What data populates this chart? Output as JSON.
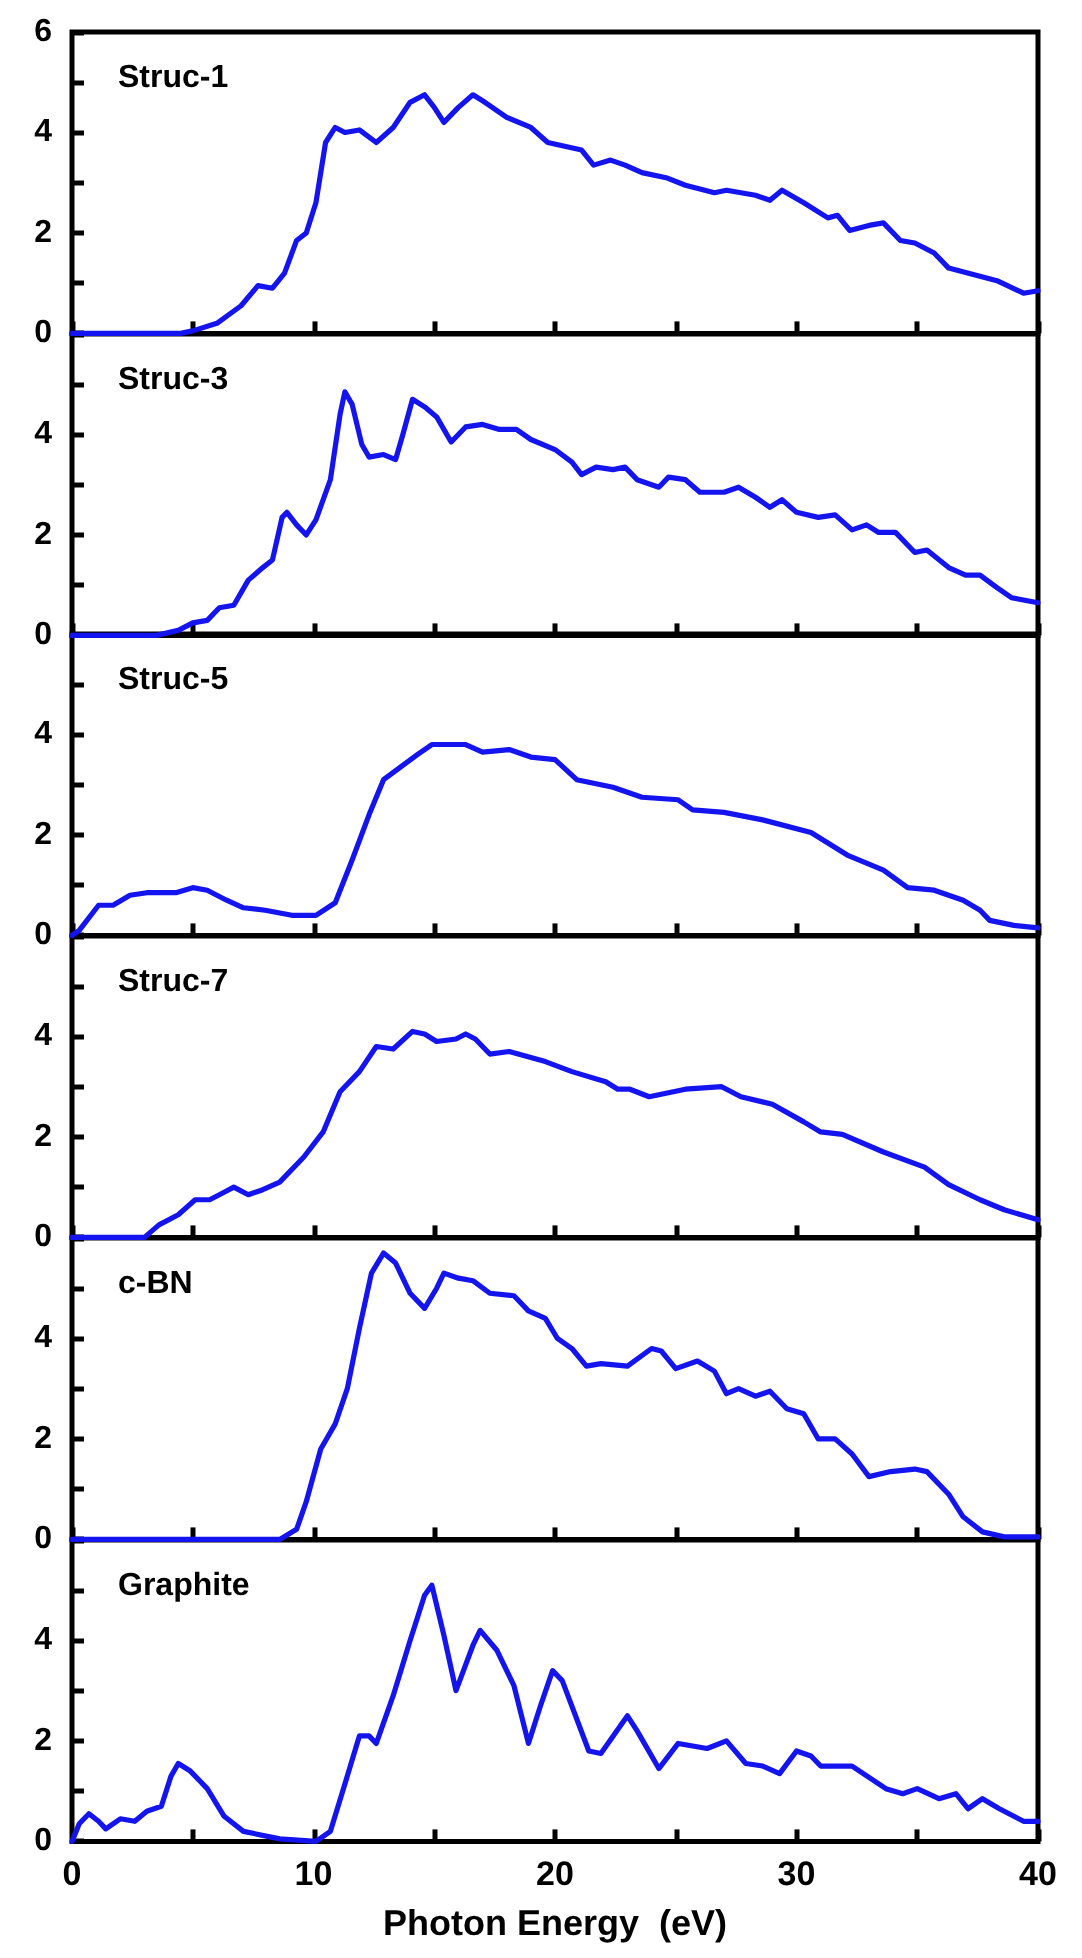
{
  "chart_data": [
    {
      "type": "line",
      "title": "Struc-1",
      "color": "#1414f0",
      "xlim": [
        0,
        40
      ],
      "xticks": [
        0,
        {
          "value": 5,
          "label": null
        },
        10,
        {
          "value": 15,
          "label": null
        },
        20,
        {
          "value": 25,
          "label": null
        },
        30,
        {
          "value": 35,
          "label": null
        },
        40
      ],
      "ylim": [
        0,
        6
      ],
      "yticks": [
        0,
        {
          "value": 1,
          "label": null
        },
        2,
        {
          "value": 3,
          "label": null
        },
        4,
        {
          "value": 5,
          "label": null
        },
        6
      ],
      "tick_labels": "y",
      "grid": false,
      "x": [
        0,
        4.5,
        5,
        6,
        7,
        7.7,
        8.3,
        8.8,
        9.3,
        9.7,
        10.1,
        10.5,
        10.9,
        11.3,
        11.9,
        12.6,
        13.3,
        14,
        14.6,
        15,
        15.4,
        16,
        16.6,
        17.1,
        18,
        19,
        19.7,
        21.1,
        21.6,
        22.3,
        22.9,
        23.6,
        24.6,
        25.4,
        26.6,
        27.1,
        28.3,
        28.9,
        29.4,
        30.3,
        31.3,
        31.7,
        32.2,
        33,
        33.6,
        34.3,
        34.9,
        35.7,
        36.3,
        38.3,
        39.4,
        40
      ],
      "values": [
        0,
        0,
        0.05,
        0.2,
        0.55,
        0.95,
        0.9,
        1.2,
        1.85,
        2.0,
        2.6,
        3.8,
        4.1,
        4.0,
        4.05,
        3.8,
        4.1,
        4.6,
        4.75,
        4.5,
        4.2,
        4.5,
        4.75,
        4.6,
        4.3,
        4.1,
        3.8,
        3.65,
        3.35,
        3.45,
        3.35,
        3.2,
        3.1,
        2.95,
        2.8,
        2.85,
        2.75,
        2.65,
        2.85,
        2.6,
        2.3,
        2.35,
        2.05,
        2.15,
        2.2,
        1.85,
        1.8,
        1.6,
        1.3,
        1.05,
        0.8,
        0.85
      ]
    },
    {
      "type": "line",
      "title": "Struc-3",
      "color": "#1414f0",
      "xlim": [
        0,
        40
      ],
      "xticks": [
        0,
        {
          "value": 5,
          "label": null
        },
        10,
        {
          "value": 15,
          "label": null
        },
        20,
        {
          "value": 25,
          "label": null
        },
        30,
        {
          "value": 35,
          "label": null
        },
        40
      ],
      "ylim": [
        0,
        6
      ],
      "yticks": [
        0,
        {
          "value": 1,
          "label": null
        },
        2,
        {
          "value": 3,
          "label": null
        },
        4,
        {
          "value": 5,
          "label": null
        },
        {
          "value": 6,
          "label": null
        }
      ],
      "tick_labels": "y",
      "grid": false,
      "x": [
        0,
        3.5,
        4.4,
        5,
        5.6,
        6.1,
        6.7,
        7.3,
        7.9,
        8.3,
        8.7,
        8.9,
        9.3,
        9.7,
        10.1,
        10.7,
        11.1,
        11.3,
        11.6,
        12,
        12.3,
        12.9,
        13.4,
        13.7,
        14.1,
        14.6,
        15.1,
        15.7,
        16.3,
        17,
        17.7,
        18.4,
        19,
        20,
        20.7,
        21.1,
        21.7,
        22.4,
        22.9,
        23.4,
        24.3,
        24.7,
        25.4,
        26,
        27,
        27.6,
        28.3,
        28.9,
        29.4,
        30,
        30.9,
        31.6,
        32.3,
        32.9,
        33.4,
        34.1,
        34.9,
        35.4,
        36.3,
        37,
        37.6,
        38.3,
        38.9,
        40
      ],
      "values": [
        0,
        0,
        0.1,
        0.25,
        0.3,
        0.55,
        0.6,
        1.1,
        1.35,
        1.5,
        2.35,
        2.45,
        2.2,
        2.0,
        2.3,
        3.1,
        4.4,
        4.85,
        4.6,
        3.8,
        3.55,
        3.6,
        3.5,
        4.0,
        4.7,
        4.55,
        4.35,
        3.85,
        4.15,
        4.2,
        4.1,
        4.1,
        3.9,
        3.7,
        3.45,
        3.2,
        3.35,
        3.3,
        3.35,
        3.1,
        2.95,
        3.15,
        3.1,
        2.85,
        2.85,
        2.95,
        2.75,
        2.55,
        2.7,
        2.45,
        2.35,
        2.4,
        2.1,
        2.2,
        2.05,
        2.05,
        1.65,
        1.7,
        1.35,
        1.2,
        1.2,
        0.95,
        0.75,
        0.65
      ]
    },
    {
      "type": "line",
      "title": "Struc-5",
      "color": "#1414f0",
      "xlim": [
        0,
        40
      ],
      "xticks": [
        0,
        {
          "value": 5,
          "label": null
        },
        10,
        {
          "value": 15,
          "label": null
        },
        20,
        {
          "value": 25,
          "label": null
        },
        30,
        {
          "value": 35,
          "label": null
        },
        40
      ],
      "ylim": [
        0,
        6
      ],
      "yticks": [
        0,
        {
          "value": 1,
          "label": null
        },
        2,
        {
          "value": 3,
          "label": null
        },
        4,
        {
          "value": 5,
          "label": null
        },
        {
          "value": 6,
          "label": null
        }
      ],
      "tick_labels": "y",
      "grid": false,
      "x": [
        0,
        0.3,
        1.1,
        1.7,
        2.4,
        3.1,
        4.3,
        5,
        5.6,
        6.4,
        7.1,
        8,
        9.1,
        10.1,
        10.9,
        11.6,
        12.3,
        12.9,
        13.6,
        14.3,
        14.9,
        16.3,
        17,
        18.1,
        19,
        20,
        20.9,
        22.4,
        23.6,
        25.1,
        25.7,
        27,
        28.6,
        30.6,
        32.1,
        33.6,
        34.6,
        35.7,
        36.9,
        37.6,
        38,
        39,
        40
      ],
      "values": [
        0,
        0.1,
        0.6,
        0.6,
        0.8,
        0.85,
        0.85,
        0.95,
        0.9,
        0.7,
        0.55,
        0.5,
        0.4,
        0.4,
        0.65,
        1.5,
        2.4,
        3.1,
        3.35,
        3.6,
        3.8,
        3.8,
        3.65,
        3.7,
        3.55,
        3.5,
        3.1,
        2.95,
        2.75,
        2.7,
        2.5,
        2.45,
        2.3,
        2.05,
        1.6,
        1.3,
        0.95,
        0.9,
        0.7,
        0.5,
        0.3,
        0.2,
        0.15
      ]
    },
    {
      "type": "line",
      "title": "Struc-7",
      "color": "#1414f0",
      "xlim": [
        0,
        40
      ],
      "xticks": [
        0,
        {
          "value": 5,
          "label": null
        },
        10,
        {
          "value": 15,
          "label": null
        },
        20,
        {
          "value": 25,
          "label": null
        },
        30,
        {
          "value": 35,
          "label": null
        },
        40
      ],
      "ylim": [
        0,
        6
      ],
      "yticks": [
        0,
        {
          "value": 1,
          "label": null
        },
        2,
        {
          "value": 3,
          "label": null
        },
        4,
        {
          "value": 5,
          "label": null
        },
        {
          "value": 6,
          "label": null
        }
      ],
      "tick_labels": "y",
      "grid": false,
      "x": [
        0,
        3,
        3.6,
        4.4,
        5.1,
        5.7,
        6.3,
        6.7,
        7.3,
        7.9,
        8.6,
        9.6,
        10.4,
        11.1,
        11.9,
        12.6,
        13.3,
        14.1,
        14.6,
        15.1,
        15.9,
        16.3,
        16.7,
        17.3,
        18.1,
        19.6,
        20.7,
        22.1,
        22.6,
        23.1,
        23.9,
        25.4,
        26.9,
        27.7,
        29,
        30.3,
        31,
        31.9,
        33.6,
        35.3,
        36.3,
        37.6,
        38.6,
        40
      ],
      "values": [
        0,
        0,
        0.25,
        0.45,
        0.75,
        0.75,
        0.9,
        1.0,
        0.85,
        0.95,
        1.1,
        1.6,
        2.1,
        2.9,
        3.3,
        3.8,
        3.75,
        4.1,
        4.05,
        3.9,
        3.95,
        4.05,
        3.95,
        3.65,
        3.7,
        3.5,
        3.3,
        3.1,
        2.95,
        2.95,
        2.8,
        2.95,
        3.0,
        2.8,
        2.65,
        2.3,
        2.1,
        2.05,
        1.7,
        1.4,
        1.05,
        0.75,
        0.55,
        0.35
      ]
    },
    {
      "type": "line",
      "title": "c-BN",
      "color": "#1414f0",
      "xlim": [
        0,
        40
      ],
      "xticks": [
        0,
        {
          "value": 5,
          "label": null
        },
        10,
        {
          "value": 15,
          "label": null
        },
        20,
        {
          "value": 25,
          "label": null
        },
        30,
        {
          "value": 35,
          "label": null
        },
        40
      ],
      "ylim": [
        0,
        6
      ],
      "yticks": [
        0,
        {
          "value": 1,
          "label": null
        },
        2,
        {
          "value": 3,
          "label": null
        },
        4,
        {
          "value": 5,
          "label": null
        },
        {
          "value": 6,
          "label": null
        }
      ],
      "tick_labels": "y",
      "grid": false,
      "x": [
        0,
        8.6,
        9.3,
        9.7,
        10.3,
        10.9,
        11.4,
        11.9,
        12.4,
        12.9,
        13.4,
        14,
        14.6,
        15.1,
        15.4,
        16,
        16.6,
        17.3,
        18.3,
        18.9,
        19.6,
        20.1,
        20.7,
        21.3,
        21.9,
        23,
        24,
        24.4,
        25,
        25.9,
        26.6,
        27.1,
        27.6,
        28.3,
        28.9,
        29.6,
        30.3,
        30.9,
        31.6,
        32.3,
        33,
        33.9,
        34.9,
        35.4,
        36.3,
        36.9,
        37.7,
        38.6,
        40
      ],
      "values": [
        0,
        0,
        0.2,
        0.75,
        1.8,
        2.3,
        3.0,
        4.2,
        5.3,
        5.7,
        5.5,
        4.9,
        4.6,
        5.0,
        5.3,
        5.2,
        5.15,
        4.9,
        4.85,
        4.55,
        4.4,
        4.0,
        3.8,
        3.45,
        3.5,
        3.45,
        3.8,
        3.75,
        3.4,
        3.55,
        3.35,
        2.9,
        3.0,
        2.85,
        2.95,
        2.6,
        2.5,
        2.0,
        2.0,
        1.7,
        1.25,
        1.35,
        1.4,
        1.35,
        0.9,
        0.45,
        0.15,
        0.05,
        0.05
      ]
    },
    {
      "type": "line",
      "title": "Graphite",
      "xlabel": "Photon Energy  (eV)",
      "color": "#1414f0",
      "xlim": [
        0,
        40
      ],
      "xticks": [
        0,
        {
          "value": 5,
          "label": null
        },
        10,
        {
          "value": 15,
          "label": null
        },
        20,
        {
          "value": 25,
          "label": null
        },
        30,
        {
          "value": 35,
          "label": null
        },
        40
      ],
      "ylim": [
        0,
        6
      ],
      "yticks": [
        0,
        {
          "value": 1,
          "label": null
        },
        2,
        {
          "value": 3,
          "label": null
        },
        4,
        {
          "value": 5,
          "label": null
        },
        {
          "value": 6,
          "label": null
        }
      ],
      "grid": false,
      "x": [
        0,
        0.3,
        0.7,
        1.1,
        1.4,
        2,
        2.6,
        3.1,
        3.4,
        3.7,
        4.1,
        4.4,
        4.9,
        5.6,
        6.3,
        7.1,
        8.6,
        10.1,
        10.7,
        11.4,
        11.9,
        12.3,
        12.6,
        13.3,
        14,
        14.6,
        14.9,
        15.4,
        15.9,
        16.6,
        16.9,
        17.6,
        18.3,
        18.9,
        19.4,
        19.9,
        20.3,
        21.4,
        21.9,
        23,
        23.4,
        24.3,
        25.1,
        26.3,
        27.1,
        27.9,
        28.6,
        29.3,
        30,
        30.6,
        31,
        32.3,
        33.7,
        34.4,
        35,
        35.9,
        36.6,
        37.1,
        37.7,
        38.4,
        39.4,
        40
      ],
      "values": [
        0,
        0.35,
        0.55,
        0.4,
        0.25,
        0.45,
        0.4,
        0.6,
        0.65,
        0.7,
        1.3,
        1.55,
        1.4,
        1.05,
        0.5,
        0.2,
        0.05,
        0,
        0.2,
        1.3,
        2.1,
        2.1,
        1.95,
        2.9,
        4.0,
        4.9,
        5.1,
        4.1,
        3.0,
        3.9,
        4.2,
        3.8,
        3.1,
        1.95,
        2.7,
        3.4,
        3.2,
        1.8,
        1.75,
        2.5,
        2.2,
        1.45,
        1.95,
        1.85,
        2.0,
        1.55,
        1.5,
        1.35,
        1.8,
        1.7,
        1.5,
        1.5,
        1.05,
        0.95,
        1.05,
        0.85,
        0.95,
        0.65,
        0.85,
        0.65,
        0.4,
        0.4
      ]
    }
  ]
}
